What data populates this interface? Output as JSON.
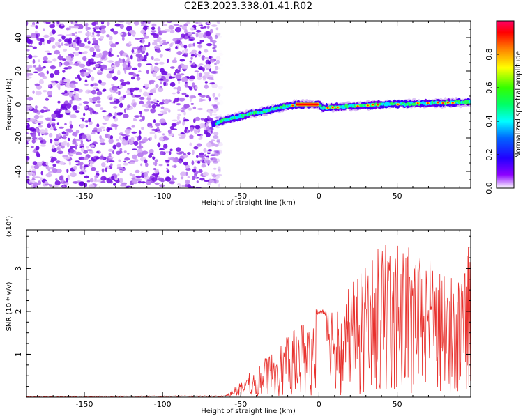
{
  "title": "C2E3.2023.338.01.41.R02",
  "chart_data": [
    {
      "type": "heatmap",
      "xlabel": "Height of straight line (km)",
      "ylabel": "Frequency (Hz)",
      "xlim": [
        -187,
        97
      ],
      "ylim": [
        -50,
        50
      ],
      "xticks": [
        -150,
        -100,
        -50,
        0,
        50
      ],
      "yticks": [
        -40,
        -20,
        0,
        20,
        40
      ],
      "noise_region_x": [
        -187,
        -65
      ],
      "ridge": {
        "x": [
          -68,
          -60,
          -50,
          -40,
          -30,
          -20,
          -15,
          0,
          2,
          20,
          40,
          60,
          80,
          97
        ],
        "y": [
          -12,
          -9,
          -7,
          -5,
          -3,
          -1,
          0,
          0,
          -2,
          -1,
          0,
          0.5,
          1,
          1.5
        ]
      },
      "colorbar": {
        "label": "Normalized spectral amplitude",
        "ticks": [
          "0.0",
          "0.2",
          "0.4",
          "0.6",
          "0.8"
        ],
        "range": [
          0,
          1
        ]
      }
    },
    {
      "type": "line",
      "xlabel": "Height of straight line (km)",
      "ylabel": "SNR (10 * v/v)",
      "multiplier": "(x10⁴)",
      "xlim": [
        -187,
        97
      ],
      "ylim": [
        0,
        3.9
      ],
      "xticks": [
        -150,
        -100,
        -50,
        0,
        50
      ],
      "yticks": [
        1,
        2,
        3
      ],
      "envelope": {
        "x": [
          -187,
          -60,
          -50,
          -40,
          -30,
          -20,
          -10,
          0,
          10,
          20,
          30,
          40,
          50,
          60,
          70,
          80,
          90,
          97
        ],
        "y": [
          0.02,
          0.03,
          0.35,
          0.7,
          1.0,
          1.35,
          1.7,
          2.0,
          2.2,
          2.5,
          2.9,
          3.6,
          3.4,
          3.3,
          3.1,
          2.9,
          2.8,
          3.5
        ]
      }
    }
  ]
}
